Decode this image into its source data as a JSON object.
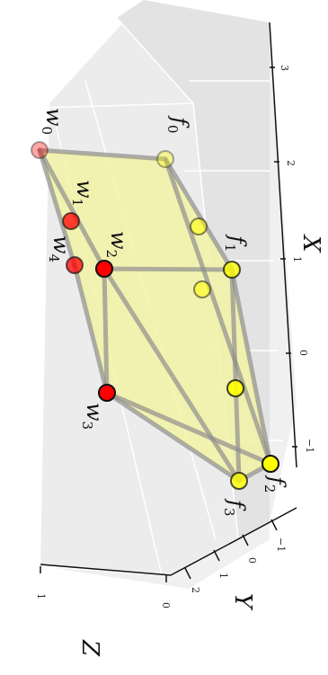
{
  "axes": {
    "x_label": "X",
    "y_label": "Y",
    "z_label": "Z",
    "x_ticks": [
      "3",
      "2",
      "1",
      "0",
      "−1"
    ],
    "y_ticks": [
      "2",
      "1",
      "0",
      "−1"
    ],
    "z_ticks": [
      "1",
      "0"
    ]
  },
  "nodes": {
    "w0": {
      "base": "w",
      "sub": "0"
    },
    "w1": {
      "base": "w",
      "sub": "1"
    },
    "w2": {
      "base": "w",
      "sub": "2"
    },
    "w3": {
      "base": "w",
      "sub": "3"
    },
    "w4": {
      "base": "w",
      "sub": "4"
    },
    "f0": {
      "base": "f",
      "sub": "0"
    },
    "f1": {
      "base": "f",
      "sub": "1"
    },
    "f2": {
      "base": "f",
      "sub": "2"
    },
    "f3": {
      "base": "f",
      "sub": "3"
    }
  },
  "colors": {
    "w_nodes": "#ff0000",
    "f_nodes": "#ffff00",
    "polygon_fill": "#f2f2a6",
    "edges": "#9a9a9a",
    "pane_bg": "#ececec",
    "grid": "#ffffff"
  }
}
